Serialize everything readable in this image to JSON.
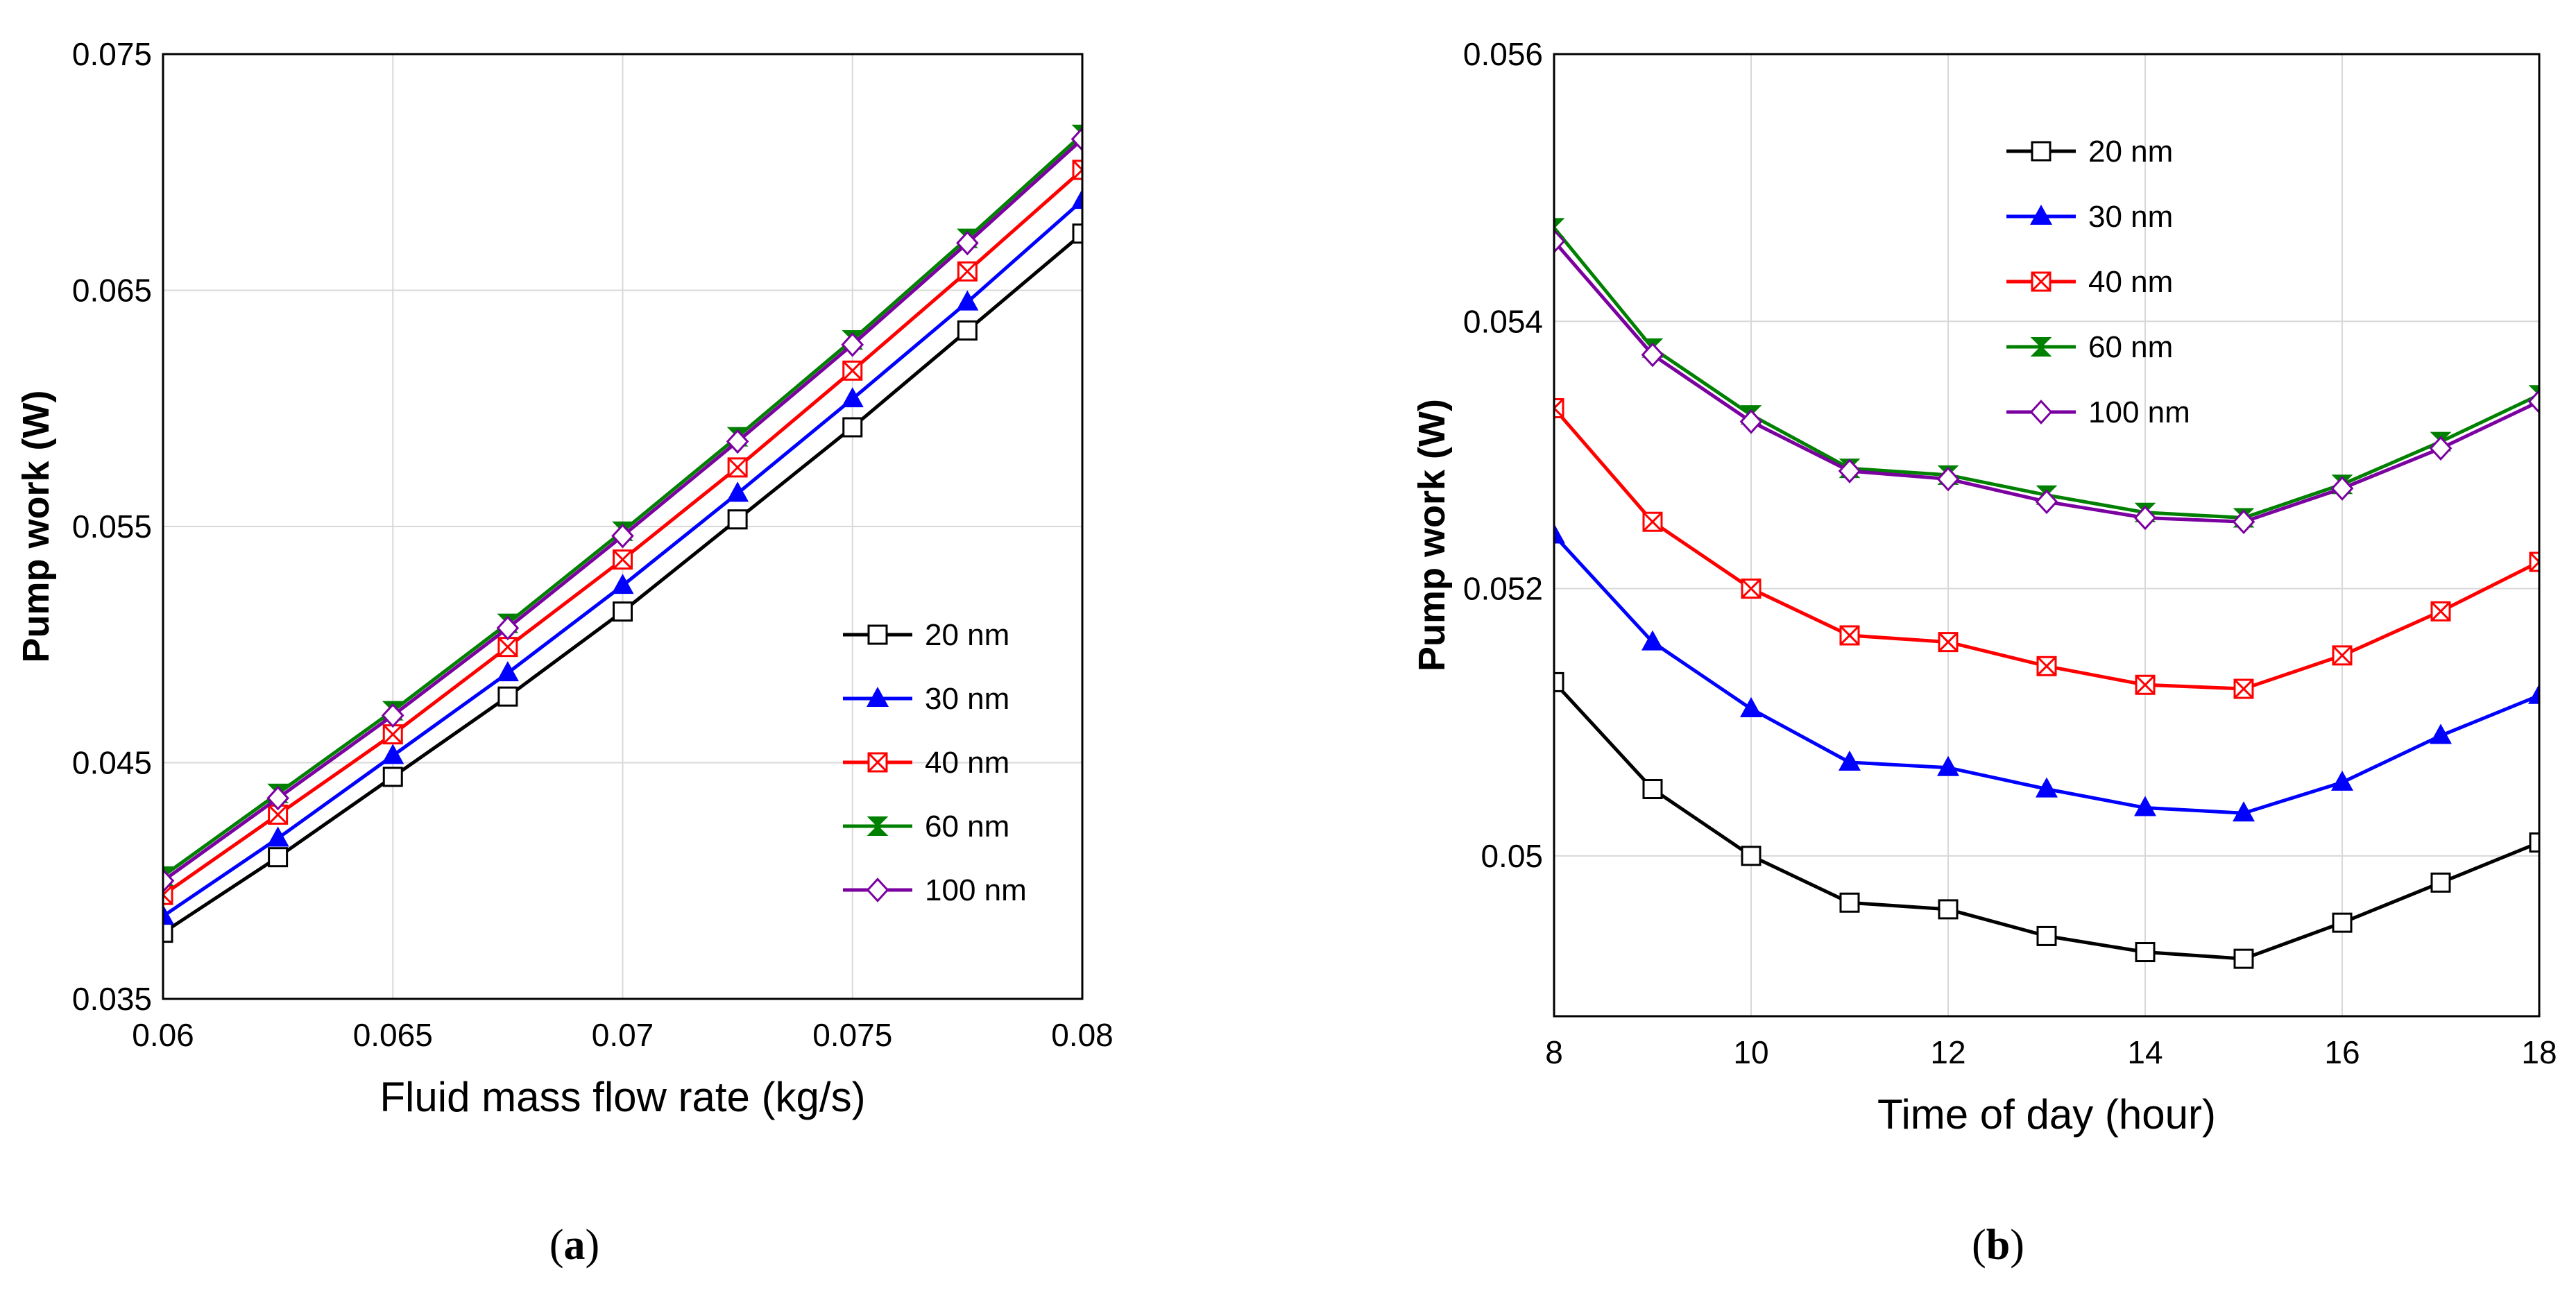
{
  "figure": {
    "panels": [
      {
        "caption_open": "(",
        "caption_letter": "a",
        "caption_close": ")"
      },
      {
        "caption_open": "(",
        "caption_letter": "b",
        "caption_close": ")"
      }
    ]
  },
  "chart_data": [
    {
      "type": "line",
      "xlabel": "Fluid mass flow rate (kg/s)",
      "ylabel": "Pump work (W)",
      "xlim": [
        0.06,
        0.08
      ],
      "ylim": [
        0.035,
        0.075
      ],
      "xticks": [
        "0.06",
        "0.065",
        "0.07",
        "0.075",
        "0.08"
      ],
      "yticks": [
        "0.035",
        "0.045",
        "0.055",
        "0.065",
        "0.075"
      ],
      "grid": true,
      "legend_position": "bottom-right",
      "x": [
        0.06,
        0.0625,
        0.065,
        0.0675,
        0.07,
        0.0725,
        0.075,
        0.0775,
        0.08
      ],
      "series": [
        {
          "name": "20 nm",
          "color": "#000000",
          "marker": "square-open",
          "values": [
            0.0378,
            0.041,
            0.0444,
            0.0478,
            0.0514,
            0.0553,
            0.0592,
            0.0633,
            0.0674
          ]
        },
        {
          "name": "30 nm",
          "color": "#0000ff",
          "marker": "triangle-up-filled",
          "values": [
            0.0385,
            0.0418,
            0.0453,
            0.0488,
            0.0525,
            0.0564,
            0.0604,
            0.0645,
            0.0688
          ]
        },
        {
          "name": "40 nm",
          "color": "#ff0000",
          "marker": "bowtie-open",
          "values": [
            0.0394,
            0.0428,
            0.0462,
            0.0499,
            0.0536,
            0.0575,
            0.0616,
            0.0658,
            0.0701
          ]
        },
        {
          "name": "60 nm",
          "color": "#008000",
          "marker": "hourglass-filled",
          "values": [
            0.0402,
            0.0437,
            0.0472,
            0.0509,
            0.0548,
            0.0588,
            0.0629,
            0.0672,
            0.0716
          ]
        },
        {
          "name": "100 nm",
          "color": "#7b00a0",
          "marker": "diamond-open",
          "values": [
            0.04,
            0.0435,
            0.047,
            0.0507,
            0.0546,
            0.0586,
            0.0627,
            0.067,
            0.0714
          ]
        }
      ]
    },
    {
      "type": "line",
      "xlabel": "Time of day (hour)",
      "ylabel": "Pump work (W)",
      "xlim": [
        8,
        18
      ],
      "ylim": [
        0.0488,
        0.056
      ],
      "xticks": [
        "8",
        "10",
        "12",
        "14",
        "16",
        "18"
      ],
      "yticks": [
        "0.05",
        "0.052",
        "0.054",
        "0.056"
      ],
      "grid": true,
      "legend_position": "top-center",
      "x": [
        8,
        9,
        10,
        11,
        12,
        13,
        14,
        15,
        16,
        17,
        18
      ],
      "series": [
        {
          "name": "20 nm",
          "color": "#000000",
          "marker": "square-open",
          "values": [
            0.0513,
            0.0505,
            0.05,
            0.04965,
            0.0496,
            0.0494,
            0.04928,
            0.04923,
            0.0495,
            0.0498,
            0.0501
          ]
        },
        {
          "name": "30 nm",
          "color": "#0000ff",
          "marker": "triangle-up-filled",
          "values": [
            0.0524,
            0.0516,
            0.0511,
            0.0507,
            0.05066,
            0.0505,
            0.05036,
            0.05032,
            0.05055,
            0.0509,
            0.0512
          ]
        },
        {
          "name": "40 nm",
          "color": "#ff0000",
          "marker": "bowtie-open",
          "values": [
            0.05335,
            0.0525,
            0.052,
            0.05165,
            0.0516,
            0.05142,
            0.05128,
            0.05125,
            0.0515,
            0.05183,
            0.0522
          ]
        },
        {
          "name": "60 nm",
          "color": "#008000",
          "marker": "hourglass-filled",
          "values": [
            0.0547,
            0.0538,
            0.0533,
            0.0529,
            0.05285,
            0.0527,
            0.05257,
            0.05253,
            0.05278,
            0.0531,
            0.05345
          ]
        },
        {
          "name": "100 nm",
          "color": "#7b00a0",
          "marker": "diamond-open",
          "values": [
            0.0546,
            0.05375,
            0.05325,
            0.05288,
            0.05282,
            0.05265,
            0.05253,
            0.0525,
            0.05275,
            0.05305,
            0.0534
          ]
        }
      ]
    }
  ]
}
